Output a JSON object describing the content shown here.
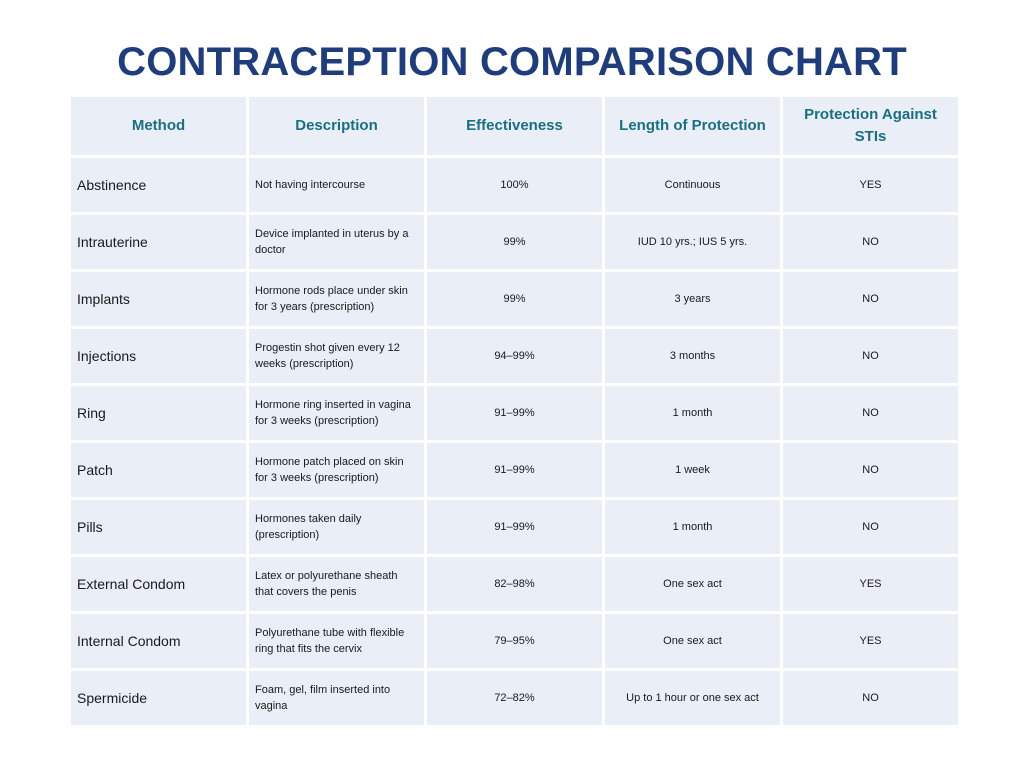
{
  "title": "CONTRACEPTION COMPARISON CHART",
  "colors": {
    "title": "#1f3d7a",
    "header_text": "#1a6f82",
    "cell_background": "#e9eef7"
  },
  "table": {
    "headers": [
      "Method",
      "Description",
      "Effectiveness",
      "Length of Protection",
      "Protection Against STIs"
    ],
    "rows": [
      {
        "method": "Abstinence",
        "description": "Not having intercourse",
        "effectiveness": "100%",
        "length": "Continuous",
        "sti": "YES"
      },
      {
        "method": "Intrauterine",
        "description": "Device implanted in uterus by a doctor",
        "effectiveness": "99%",
        "length": "IUD 10 yrs.; IUS 5 yrs.",
        "sti": "NO"
      },
      {
        "method": "Implants",
        "description": "Hormone rods place under skin for 3 years (prescription)",
        "effectiveness": "99%",
        "length": "3 years",
        "sti": "NO"
      },
      {
        "method": "Injections",
        "description": "Progestin shot given every 12 weeks (prescription)",
        "effectiveness": "94–99%",
        "length": "3 months",
        "sti": "NO"
      },
      {
        "method": "Ring",
        "description": "Hormone ring inserted in vagina for 3 weeks (prescription)",
        "effectiveness": "91–99%",
        "length": "1 month",
        "sti": "NO"
      },
      {
        "method": "Patch",
        "description": "Hormone patch placed on skin for 3 weeks (prescription)",
        "effectiveness": "91–99%",
        "length": "1 week",
        "sti": "NO"
      },
      {
        "method": "Pills",
        "description": "Hormones taken daily (prescription)",
        "effectiveness": "91–99%",
        "length": "1 month",
        "sti": "NO"
      },
      {
        "method": "External Condom",
        "description": "Latex or polyurethane sheath that covers the penis",
        "effectiveness": "82–98%",
        "length": "One sex act",
        "sti": "YES"
      },
      {
        "method": "Internal Condom",
        "description": "Polyurethane tube with flexible ring that fits the cervix",
        "effectiveness": "79–95%",
        "length": "One sex act",
        "sti": "YES"
      },
      {
        "method": "Spermicide",
        "description": "Foam, gel, film inserted into vagina",
        "effectiveness": "72–82%",
        "length": "Up to 1 hour or one sex act",
        "sti": "NO"
      }
    ]
  }
}
